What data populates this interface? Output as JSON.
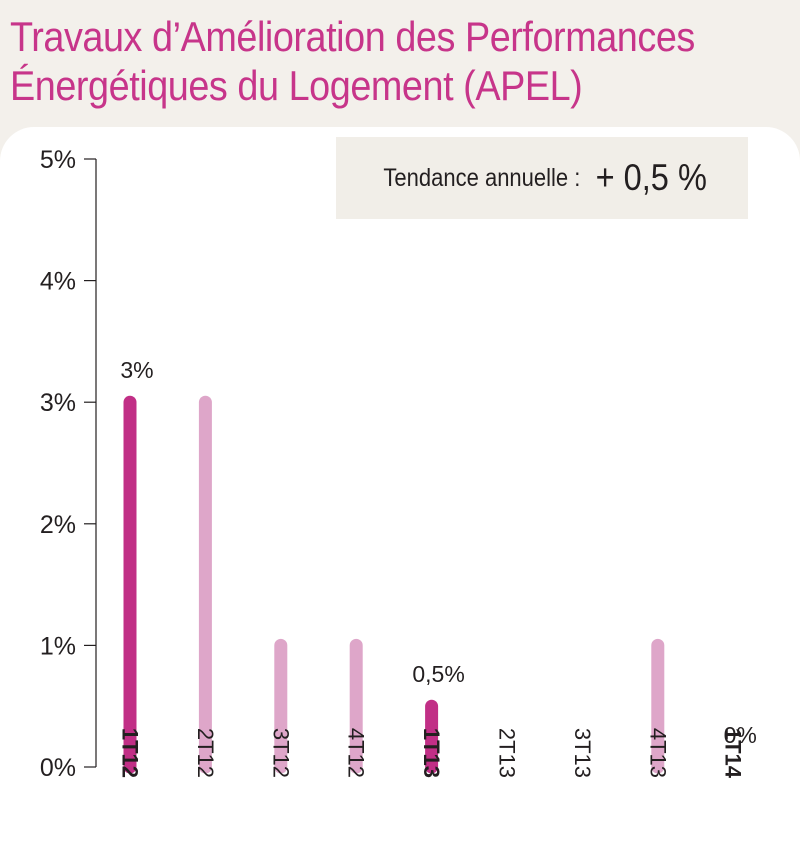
{
  "title_line1": "Travaux d’Amélioration des Performances",
  "title_line2": "Énergétiques du Logement (APEL)",
  "trend": {
    "label": "Tendance annuelle :",
    "value": "+ 0,5 %"
  },
  "colors": {
    "title": "#c7358a",
    "highlight": "#c12f86",
    "normal": "#dea6c9",
    "text": "#231f20"
  },
  "chart_data": {
    "type": "bar",
    "categories": [
      "1T12",
      "2T12",
      "3T12",
      "4T12",
      "1T13",
      "2T13",
      "3T13",
      "4T13",
      "1T14"
    ],
    "values": [
      3,
      3,
      1,
      1,
      0.5,
      0,
      0,
      1,
      0
    ],
    "highlighted": [
      "1T12",
      "1T13",
      "1T14"
    ],
    "data_labels": [
      {
        "category": "1T12",
        "text": "3%"
      },
      {
        "category": "1T13",
        "text": "0,5%"
      },
      {
        "category": "1T14",
        "text": "0%"
      }
    ],
    "y_ticks": [
      "0%",
      "1%",
      "2%",
      "3%",
      "4%",
      "5%"
    ],
    "ylim": [
      0,
      5
    ],
    "xlabel": "",
    "ylabel": "",
    "grid": false
  }
}
